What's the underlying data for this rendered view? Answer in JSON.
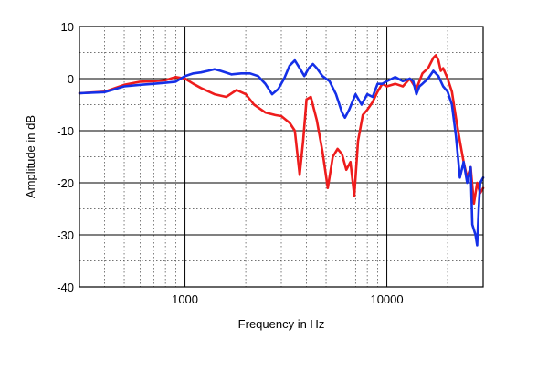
{
  "chart_data": {
    "type": "line",
    "xlabel": "Frequency in Hz",
    "ylabel": "Amplitude in dB",
    "x_scale": "log",
    "xlim": [
      300,
      30000
    ],
    "ylim": [
      -40,
      10
    ],
    "grid": true,
    "x_tick_labels": [
      "1000",
      "10000"
    ],
    "x_tick_values": [
      1000,
      10000
    ],
    "y_tick_labels": [
      "10",
      "0",
      "-10",
      "-20",
      "-30",
      "-40"
    ],
    "y_tick_values": [
      10,
      0,
      -10,
      -20,
      -30,
      -40
    ],
    "series": [
      {
        "color": "#ee1c1c",
        "points": [
          [
            300,
            -2.8
          ],
          [
            400,
            -2.5
          ],
          [
            500,
            -1.2
          ],
          [
            600,
            -0.6
          ],
          [
            700,
            -0.5
          ],
          [
            800,
            -0.3
          ],
          [
            900,
            0.3
          ],
          [
            1000,
            0.0
          ],
          [
            1100,
            -1.0
          ],
          [
            1200,
            -1.8
          ],
          [
            1400,
            -3.0
          ],
          [
            1600,
            -3.5
          ],
          [
            1800,
            -2.2
          ],
          [
            2000,
            -3.0
          ],
          [
            2200,
            -5.0
          ],
          [
            2500,
            -6.5
          ],
          [
            2800,
            -7.0
          ],
          [
            3000,
            -7.2
          ],
          [
            3300,
            -8.5
          ],
          [
            3500,
            -10.0
          ],
          [
            3700,
            -18.5
          ],
          [
            3850,
            -12.0
          ],
          [
            4000,
            -4.0
          ],
          [
            4200,
            -3.5
          ],
          [
            4500,
            -8.0
          ],
          [
            4800,
            -14.0
          ],
          [
            5100,
            -21.0
          ],
          [
            5400,
            -15.0
          ],
          [
            5700,
            -13.5
          ],
          [
            6000,
            -14.5
          ],
          [
            6300,
            -17.5
          ],
          [
            6600,
            -16.0
          ],
          [
            6900,
            -22.5
          ],
          [
            7200,
            -12.0
          ],
          [
            7600,
            -7.0
          ],
          [
            8000,
            -6.0
          ],
          [
            8500,
            -4.5
          ],
          [
            9000,
            -2.5
          ],
          [
            9500,
            -1.0
          ],
          [
            10000,
            -1.5
          ],
          [
            11000,
            -1.0
          ],
          [
            12000,
            -1.5
          ],
          [
            13000,
            0.0
          ],
          [
            14000,
            -2.0
          ],
          [
            15000,
            1.0
          ],
          [
            16000,
            2.0
          ],
          [
            17000,
            4.0
          ],
          [
            17500,
            4.5
          ],
          [
            18000,
            3.5
          ],
          [
            18500,
            1.5
          ],
          [
            19000,
            2.0
          ],
          [
            20000,
            0.0
          ],
          [
            21000,
            -2.5
          ],
          [
            22000,
            -7.5
          ],
          [
            23000,
            -12.0
          ],
          [
            24000,
            -16.0
          ],
          [
            25000,
            -19.0
          ],
          [
            26000,
            -17.0
          ],
          [
            27000,
            -24.0
          ],
          [
            28000,
            -20.0
          ],
          [
            29000,
            -22.0
          ],
          [
            30000,
            -21.0
          ]
        ]
      },
      {
        "color": "#1530e8",
        "points": [
          [
            300,
            -2.8
          ],
          [
            400,
            -2.6
          ],
          [
            500,
            -1.5
          ],
          [
            600,
            -1.2
          ],
          [
            700,
            -1.0
          ],
          [
            800,
            -0.8
          ],
          [
            900,
            -0.6
          ],
          [
            1000,
            0.5
          ],
          [
            1100,
            1.0
          ],
          [
            1200,
            1.2
          ],
          [
            1300,
            1.5
          ],
          [
            1400,
            1.8
          ],
          [
            1500,
            1.5
          ],
          [
            1700,
            0.8
          ],
          [
            1900,
            1.0
          ],
          [
            2100,
            1.0
          ],
          [
            2300,
            0.5
          ],
          [
            2500,
            -1.0
          ],
          [
            2700,
            -3.0
          ],
          [
            2900,
            -2.0
          ],
          [
            3100,
            0.0
          ],
          [
            3300,
            2.5
          ],
          [
            3500,
            3.5
          ],
          [
            3700,
            2.0
          ],
          [
            3900,
            0.5
          ],
          [
            4100,
            2.0
          ],
          [
            4300,
            2.8
          ],
          [
            4500,
            2.0
          ],
          [
            4800,
            0.5
          ],
          [
            5200,
            -0.5
          ],
          [
            5600,
            -3.0
          ],
          [
            6000,
            -6.5
          ],
          [
            6200,
            -7.5
          ],
          [
            6500,
            -6.0
          ],
          [
            7000,
            -3.0
          ],
          [
            7500,
            -5.0
          ],
          [
            8000,
            -3.0
          ],
          [
            8500,
            -3.5
          ],
          [
            9000,
            -1.0
          ],
          [
            9500,
            -1.0
          ],
          [
            10000,
            -0.5
          ],
          [
            11000,
            0.3
          ],
          [
            12000,
            -0.5
          ],
          [
            13000,
            0.0
          ],
          [
            13500,
            -0.5
          ],
          [
            14000,
            -3.0
          ],
          [
            14500,
            -1.5
          ],
          [
            15000,
            -1.0
          ],
          [
            16000,
            0.0
          ],
          [
            17000,
            1.5
          ],
          [
            18000,
            0.5
          ],
          [
            19000,
            -1.5
          ],
          [
            20000,
            -2.5
          ],
          [
            21000,
            -5.0
          ],
          [
            22000,
            -11.0
          ],
          [
            22500,
            -15.0
          ],
          [
            23000,
            -19.0
          ],
          [
            24000,
            -16.0
          ],
          [
            25000,
            -20.0
          ],
          [
            26000,
            -17.0
          ],
          [
            26500,
            -28.0
          ],
          [
            27500,
            -30.0
          ],
          [
            28000,
            -32.0
          ],
          [
            28500,
            -25.0
          ],
          [
            29000,
            -20.0
          ],
          [
            30000,
            -19.0
          ]
        ]
      }
    ]
  }
}
